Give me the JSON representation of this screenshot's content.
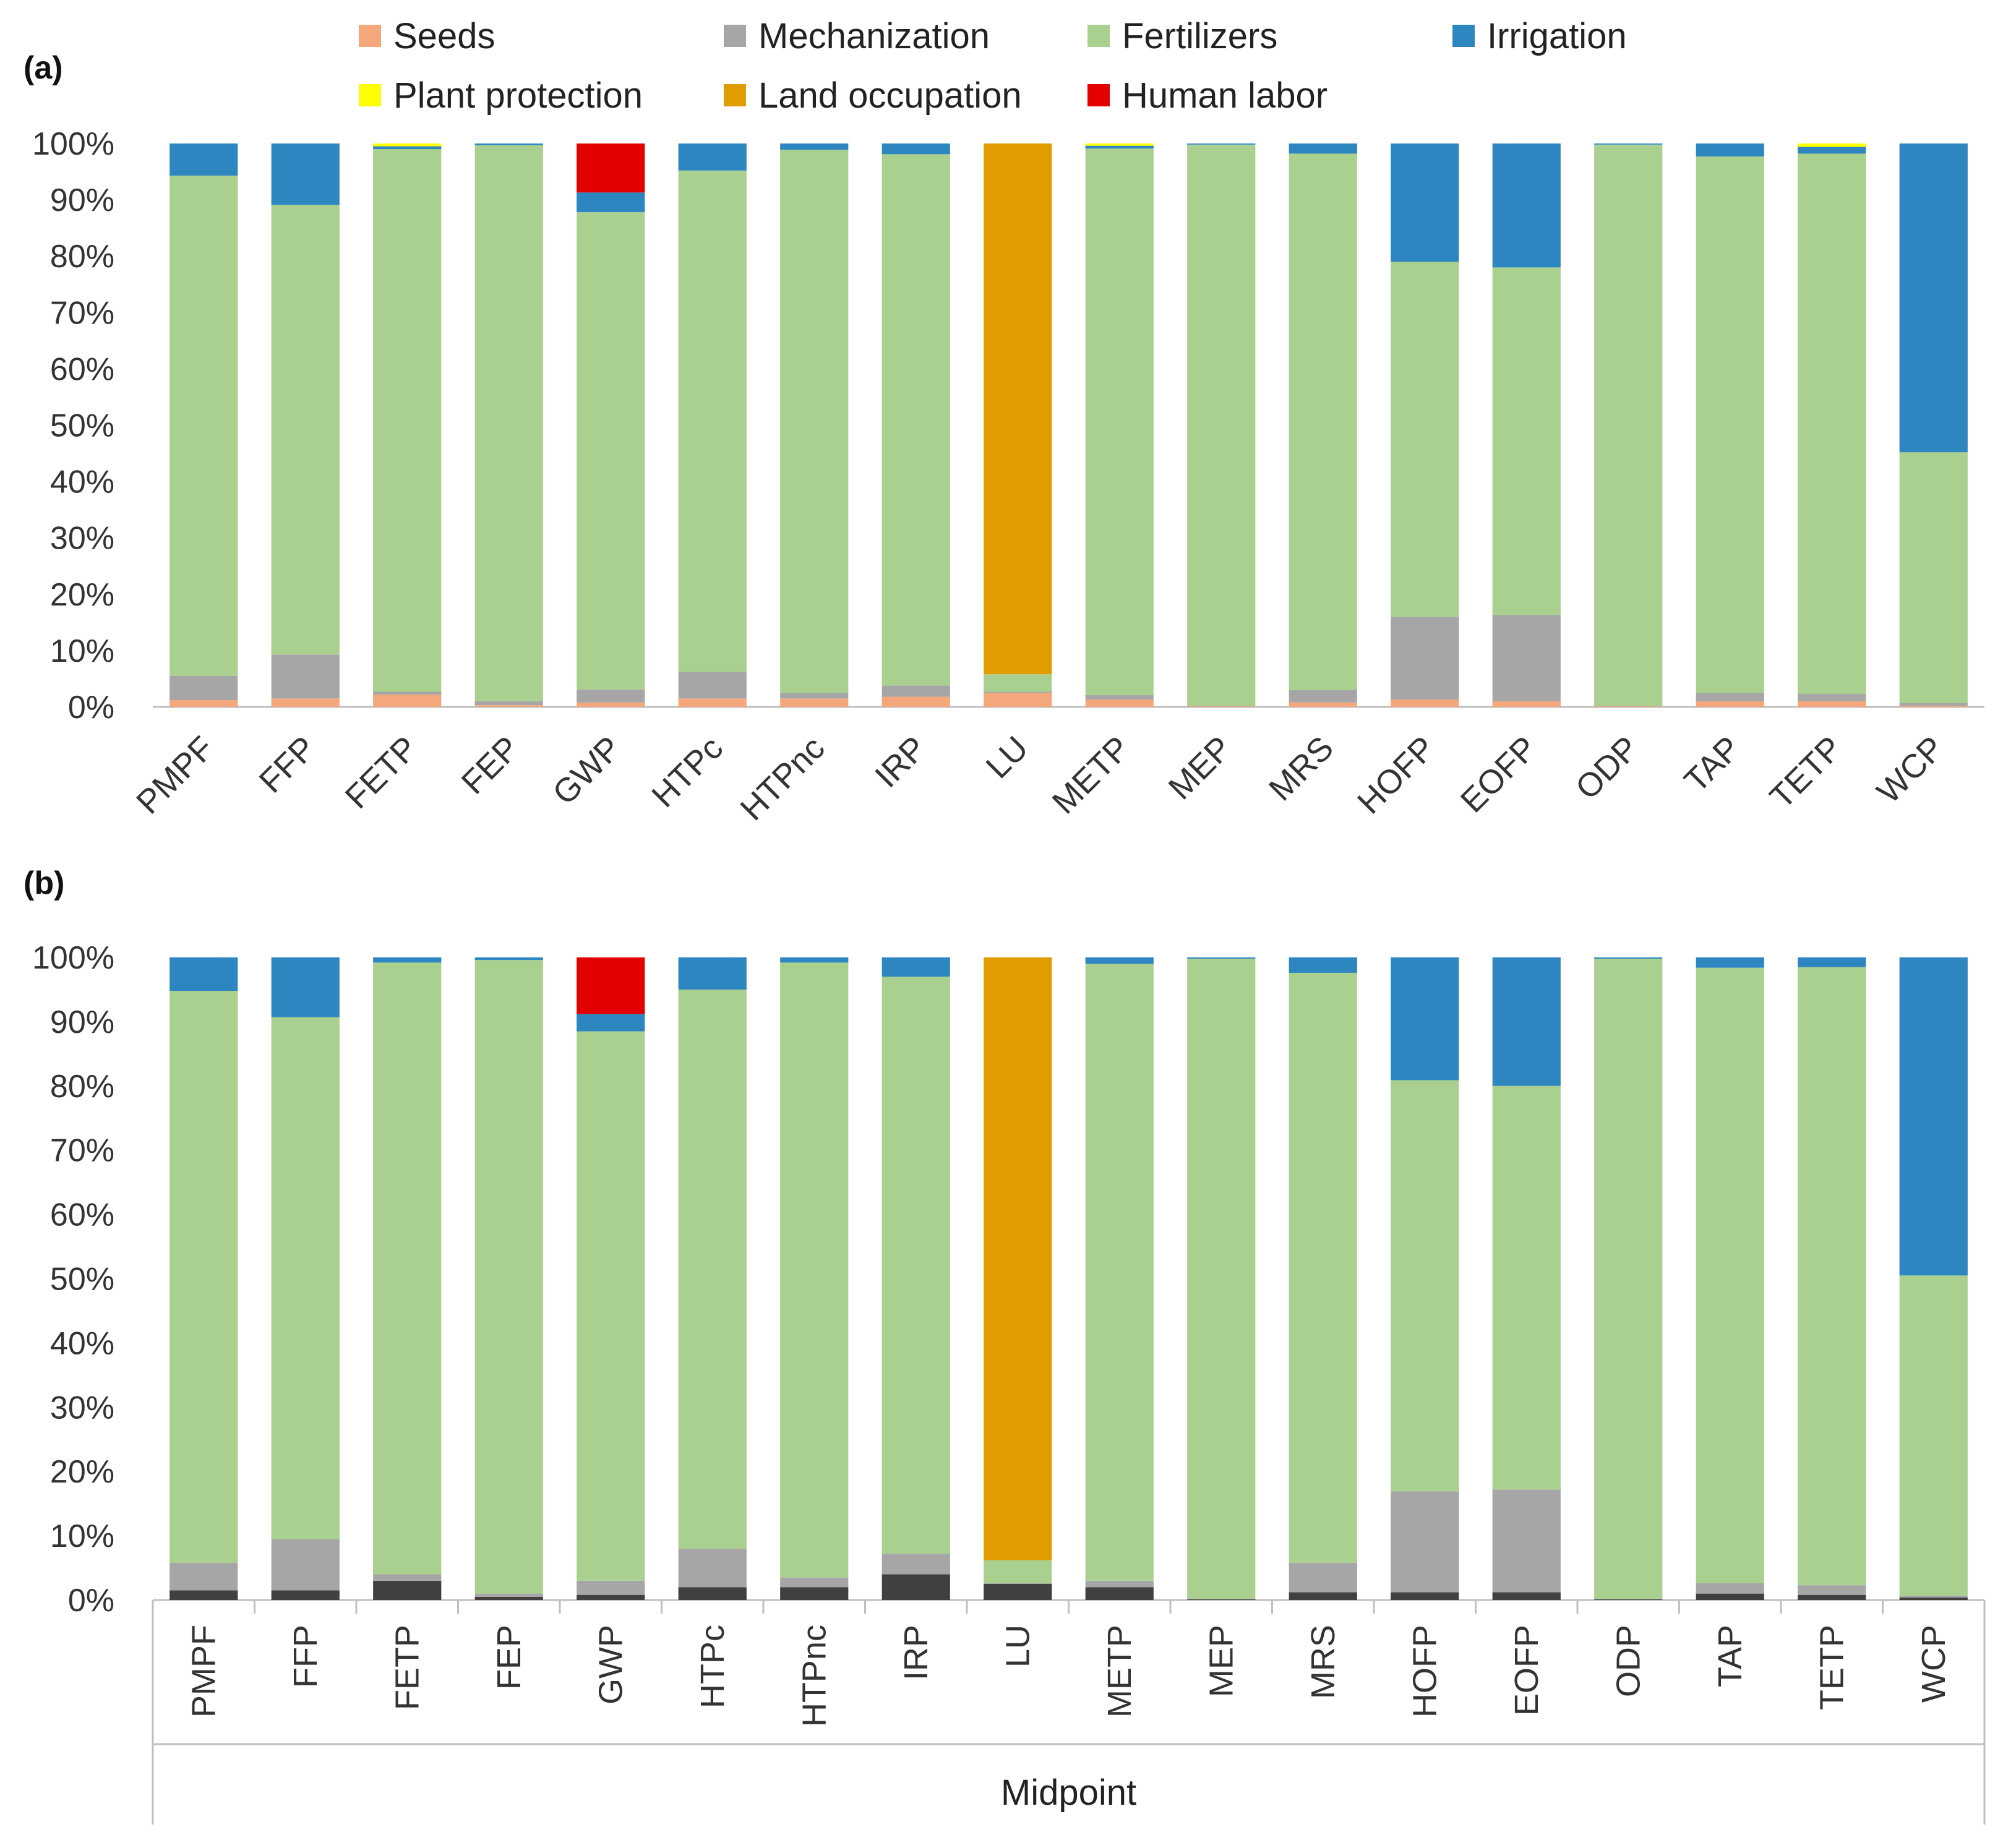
{
  "colors": {
    "Seeds": "#f4a77a",
    "Mechanization": "#a6a6a6",
    "Fertilizers": "#a9d08e",
    "Irrigation": "#2e86c1",
    "Plant protection": "#ffff00",
    "Land occupation": "#e09c00",
    "Human labor": "#e30000",
    "seeds_b": "#404040"
  },
  "legend": {
    "items": [
      {
        "label": "Seeds",
        "color": "#f4a77a"
      },
      {
        "label": "Mechanization",
        "color": "#a6a6a6"
      },
      {
        "label": "Fertilizers",
        "color": "#a9d08e"
      },
      {
        "label": "Irrigation",
        "color": "#2e86c1"
      },
      {
        "label": "Plant protection",
        "color": "#ffff00"
      },
      {
        "label": "Land occupation",
        "color": "#e09c00"
      },
      {
        "label": "Human labor",
        "color": "#e30000"
      }
    ]
  },
  "chart_data": [
    {
      "panel": "(a)",
      "type": "bar",
      "stacked": true,
      "categories": [
        "PMPF",
        "FFP",
        "FETP",
        "FEP",
        "GWP",
        "HTPc",
        "HTPnc",
        "IRP",
        "LU",
        "METP",
        "MEP",
        "MRS",
        "HOFP",
        "EOFP",
        "ODP",
        "TAP",
        "TETP",
        "WCP"
      ],
      "ylim": [
        0,
        100
      ],
      "yticks": [
        "0%",
        "10%",
        "20%",
        "30%",
        "40%",
        "50%",
        "60%",
        "70%",
        "80%",
        "90%",
        "100%"
      ],
      "xlabel": "",
      "series": [
        {
          "name": "Seeds",
          "values": [
            1.2,
            1.5,
            2.2,
            0.3,
            0.8,
            1.5,
            1.5,
            1.8,
            2.5,
            1.3,
            0.1,
            0.8,
            1.3,
            1.0,
            0.1,
            1.0,
            1.0,
            0.2
          ]
        },
        {
          "name": "Mechanization",
          "values": [
            4.3,
            7.8,
            0.5,
            0.7,
            2.3,
            4.7,
            1.0,
            2.0,
            0.2,
            0.8,
            0.1,
            2.2,
            14.7,
            15.3,
            0.1,
            1.5,
            1.3,
            0.5
          ]
        },
        {
          "name": "Fertilizers",
          "values": [
            88.8,
            79.8,
            96.3,
            98.7,
            84.7,
            89.0,
            96.4,
            94.3,
            3.1,
            97.0,
            99.6,
            95.2,
            63.0,
            61.7,
            99.6,
            95.2,
            95.9,
            44.5
          ]
        },
        {
          "name": "Irrigation",
          "values": [
            5.7,
            10.9,
            0.5,
            0.3,
            3.5,
            4.8,
            1.1,
            1.9,
            0.0,
            0.5,
            0.2,
            1.8,
            21.0,
            22.0,
            0.2,
            2.3,
            1.2,
            54.8
          ]
        },
        {
          "name": "Plant protection",
          "values": [
            0.0,
            0.0,
            0.5,
            0.0,
            0.0,
            0.0,
            0.0,
            0.0,
            0.0,
            0.4,
            0.0,
            0.0,
            0.0,
            0.0,
            0.0,
            0.0,
            0.6,
            0.0
          ]
        },
        {
          "name": "Land occupation",
          "values": [
            0,
            0,
            0,
            0,
            0,
            0,
            0,
            0,
            94.2,
            0,
            0,
            0,
            0,
            0,
            0,
            0,
            0,
            0
          ]
        },
        {
          "name": "Human labor",
          "values": [
            0,
            0,
            0,
            0,
            8.7,
            0,
            0,
            0,
            0,
            0,
            0,
            0,
            0,
            0,
            0,
            0,
            0,
            0
          ]
        }
      ]
    },
    {
      "panel": "(b)",
      "type": "bar",
      "stacked": true,
      "categories": [
        "PMPF",
        "FFP",
        "FETP",
        "FEP",
        "GWP",
        "HTPc",
        "HTPnc",
        "IRP",
        "LU",
        "METP",
        "MEP",
        "MRS",
        "HOFP",
        "EOFP",
        "ODP",
        "TAP",
        "TETP",
        "WCP"
      ],
      "ylim": [
        0,
        100
      ],
      "yticks": [
        "0%",
        "10%",
        "20%",
        "30%",
        "40%",
        "50%",
        "60%",
        "70%",
        "80%",
        "90%",
        "100%"
      ],
      "xlabel": "Midpoint",
      "series": [
        {
          "name": "Seeds",
          "values": [
            1.5,
            1.5,
            3.0,
            0.5,
            0.8,
            2.0,
            2.0,
            4.0,
            2.5,
            2.0,
            0.1,
            1.2,
            1.2,
            1.2,
            0.1,
            1.0,
            0.8,
            0.4
          ]
        },
        {
          "name": "Mechanization",
          "values": [
            4.3,
            8.0,
            1.0,
            0.5,
            2.2,
            6.0,
            1.5,
            3.2,
            0.1,
            1.0,
            0.1,
            4.6,
            15.7,
            16.0,
            0.1,
            1.6,
            1.5,
            0.3
          ]
        },
        {
          "name": "Fertilizers",
          "values": [
            89.0,
            81.2,
            95.2,
            98.6,
            85.5,
            87.0,
            95.7,
            89.8,
            3.6,
            96.0,
            99.6,
            91.8,
            64.0,
            62.8,
            99.6,
            95.8,
            96.2,
            49.8
          ]
        },
        {
          "name": "Irrigation",
          "values": [
            5.2,
            9.3,
            0.8,
            0.4,
            2.7,
            5.0,
            0.8,
            3.0,
            0.0,
            1.0,
            0.2,
            2.4,
            19.1,
            20.0,
            0.2,
            1.6,
            1.5,
            49.5
          ]
        },
        {
          "name": "Plant protection",
          "values": [
            0,
            0,
            0,
            0,
            0,
            0,
            0,
            0,
            0,
            0,
            0,
            0,
            0,
            0,
            0,
            0,
            0,
            0
          ]
        },
        {
          "name": "Land occupation",
          "values": [
            0,
            0,
            0,
            0,
            0,
            0,
            0,
            0,
            93.8,
            0,
            0,
            0,
            0,
            0,
            0,
            0,
            0,
            0
          ]
        },
        {
          "name": "Human labor",
          "values": [
            0,
            0,
            0,
            0,
            8.8,
            0,
            0,
            0,
            0,
            0,
            0,
            0,
            0,
            0,
            0,
            0,
            0,
            0
          ]
        }
      ]
    }
  ]
}
